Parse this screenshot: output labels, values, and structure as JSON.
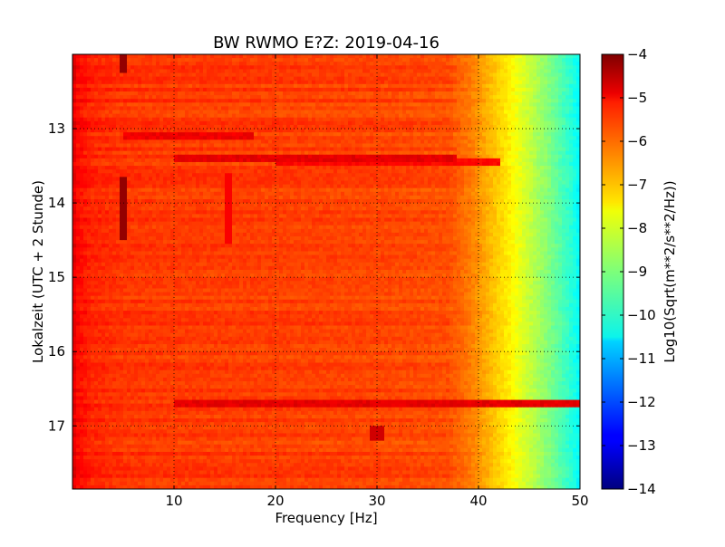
{
  "chart_data": {
    "type": "heatmap",
    "title": "BW RWMO E?Z: 2019-04-16",
    "xlabel": "Frequency [Hz]",
    "ylabel": "Lokalzeit (UTC + 2 Stunde)",
    "xlim": [
      0,
      50
    ],
    "ylim": [
      17.85,
      12.0
    ],
    "y_inverted": true,
    "x_ticks": [
      10,
      20,
      30,
      40,
      50
    ],
    "x_tick_labels": [
      "10",
      "20",
      "30",
      "40",
      "50"
    ],
    "y_ticks": [
      13,
      14,
      15,
      16,
      17
    ],
    "y_tick_labels": [
      "13",
      "14",
      "15",
      "16",
      "17"
    ],
    "grid": true,
    "colormap": "jet",
    "colorbar": {
      "label": "Log10(Sqrt(m**2/s**2/Hz))",
      "range": [
        -14,
        -4
      ],
      "ticks": [
        -4,
        -5,
        -6,
        -7,
        -8,
        -9,
        -10,
        -11,
        -12,
        -13,
        -14
      ],
      "tick_labels": [
        "−4",
        "−5",
        "−6",
        "−7",
        "−8",
        "−9",
        "−10",
        "−11",
        "−12",
        "−13",
        "−14"
      ]
    },
    "frequency_profile": {
      "frequency_hz": [
        0,
        0.5,
        2,
        5,
        10,
        20,
        30,
        37,
        39,
        41,
        43,
        45,
        47,
        49,
        50
      ],
      "log10_amplitude": [
        -4.9,
        -5.3,
        -5.6,
        -5.75,
        -5.8,
        -5.85,
        -5.9,
        -6.0,
        -6.4,
        -7.0,
        -7.6,
        -8.3,
        -9.0,
        -9.8,
        -10.3
      ]
    },
    "features": [
      {
        "kind": "band",
        "time": 13.1,
        "f_start": 5,
        "f_end": 18,
        "log10_amplitude": -5.1
      },
      {
        "kind": "band",
        "time": 13.4,
        "f_start": 10,
        "f_end": 38,
        "log10_amplitude": -5.0
      },
      {
        "kind": "band",
        "time": 13.45,
        "f_start": 20,
        "f_end": 42,
        "log10_amplitude": -5.3
      },
      {
        "kind": "band",
        "time": 16.7,
        "f_start": 10,
        "f_end": 50,
        "log10_amplitude": -5.0
      },
      {
        "kind": "line",
        "frequency": 5,
        "t_start": 12.0,
        "t_end": 12.25,
        "log10_amplitude": -4.2
      },
      {
        "kind": "line",
        "frequency": 5,
        "t_start": 13.65,
        "t_end": 14.5,
        "log10_amplitude": -4.2
      },
      {
        "kind": "line",
        "frequency": 15.3,
        "t_start": 13.6,
        "t_end": 14.55,
        "log10_amplitude": -5.2
      },
      {
        "kind": "spot",
        "frequency": 30,
        "time": 17.1,
        "log10_amplitude": -4.8
      }
    ]
  }
}
